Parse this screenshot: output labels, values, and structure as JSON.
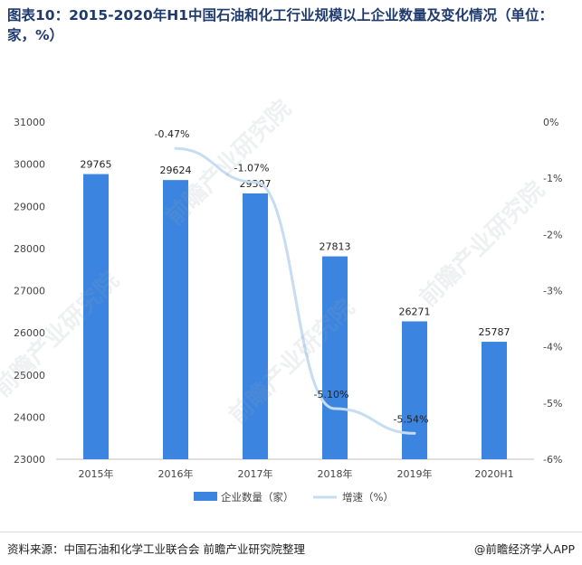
{
  "title": "图表10：2015-2020年H1中国石油和化工行业规模以上企业数量及变化情况（单位：家，%）",
  "footer": {
    "source": "资料来源：中国石油和化学工业联合会 前瞻产业研究院整理",
    "brand": "@前瞻经济学人APP"
  },
  "watermark": "前瞻产业研究院",
  "colors": {
    "bar": "#3b85e0",
    "line": "#c5dcf2",
    "title": "#1f3b6e",
    "axis_text": "#444444"
  },
  "chart_data": {
    "type": "bar",
    "categories": [
      "2015年",
      "2016年",
      "2017年",
      "2018年",
      "2019年",
      "2020H1"
    ],
    "series": [
      {
        "name": "企业数量（家）",
        "type": "bar",
        "axis": "left",
        "values": [
          29765,
          29624,
          29307,
          27813,
          26271,
          25787
        ]
      },
      {
        "name": "增速（%）",
        "type": "line",
        "axis": "right",
        "values": [
          null,
          -0.47,
          -1.07,
          -5.1,
          -5.54,
          null
        ],
        "labels": [
          "",
          "-0.47%",
          "-1.07%",
          "-5.10%",
          "-5.54%",
          ""
        ]
      }
    ],
    "left_axis": {
      "min": 23000,
      "max": 31000,
      "ticks": [
        "23000",
        "24000",
        "25000",
        "26000",
        "27000",
        "28000",
        "29000",
        "30000",
        "31000"
      ]
    },
    "right_axis": {
      "min": -6,
      "max": 0,
      "ticks": [
        "0%",
        "-1%",
        "-2%",
        "-3%",
        "-4%",
        "-5%",
        "-6%"
      ]
    },
    "legend_position": "bottom",
    "grid": false
  }
}
